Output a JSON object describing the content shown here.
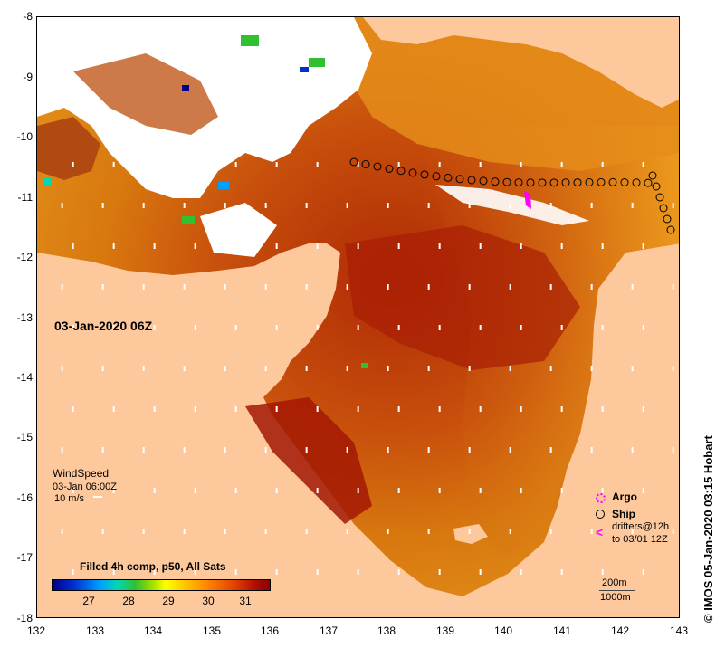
{
  "map": {
    "date_label": "03-Jan-2020 06Z",
    "lat_ticks": [
      "-8",
      "-9",
      "-10",
      "-11",
      "-12",
      "-13",
      "-14",
      "-15",
      "-16",
      "-17",
      "-18"
    ],
    "lon_ticks": [
      "132",
      "133",
      "134",
      "135",
      "136",
      "137",
      "138",
      "139",
      "140",
      "141",
      "142",
      "143"
    ],
    "land_color": "#fcc89c",
    "cloud_color": "#ffffff"
  },
  "wind": {
    "title": "WindSpeed",
    "time": "03-Jan 06:00Z",
    "scale": "10 m/s"
  },
  "legend": {
    "argo": "Argo",
    "ship": "Ship",
    "drifters_line1": "drifters@12h",
    "drifters_line2": "to 03/01 12Z",
    "drifter_symbol": "<"
  },
  "colorbar": {
    "title": "Filled 4h comp, p50, All Sats",
    "labels": [
      "27",
      "28",
      "29",
      "30",
      "31"
    ]
  },
  "depth": {
    "contour1": "200m",
    "contour2": "1000m"
  },
  "credit": "© IMOS 05-Jan-2020 03:15 Hobart"
}
